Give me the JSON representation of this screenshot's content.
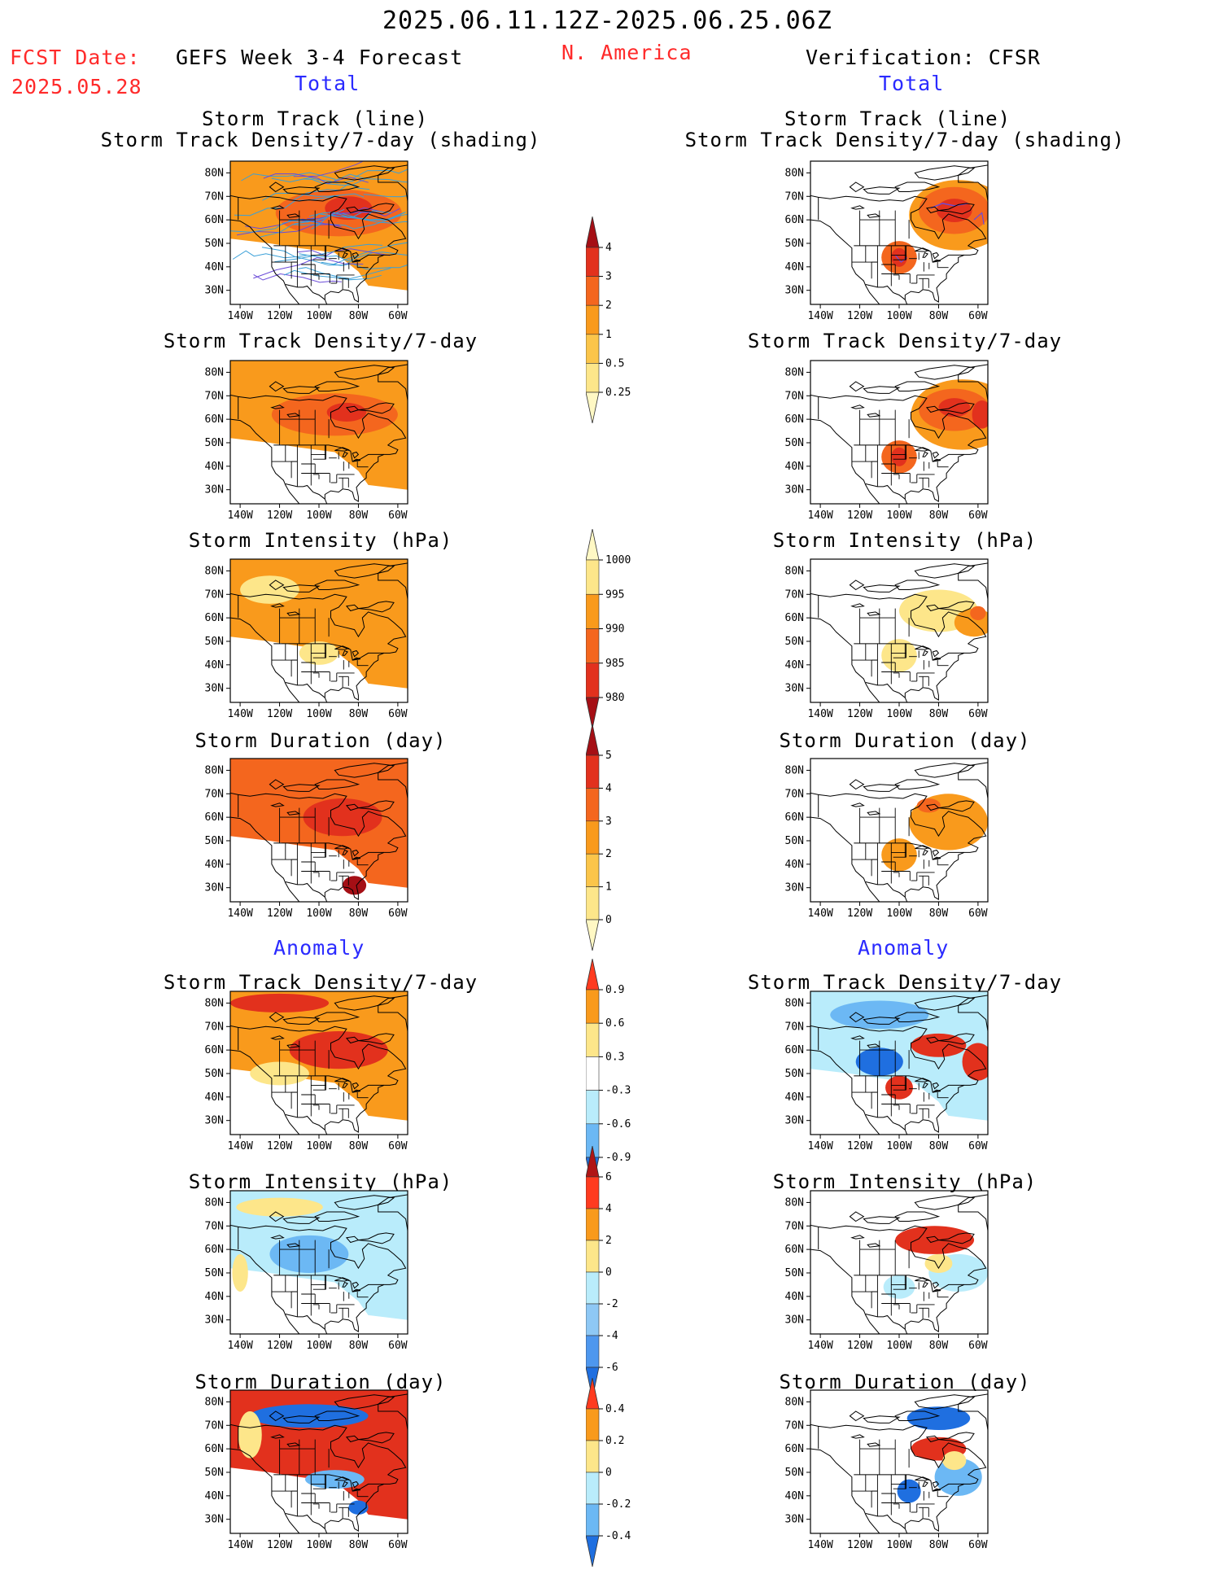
{
  "header": {
    "period": "2025.06.11.12Z-2025.06.25.06Z",
    "fcst_label": "FCST Date:",
    "fcst_date": "2025.05.28",
    "forecast_title": "GEFS Week 3-4 Forecast",
    "region": "N. America",
    "verification": "Verification: CFSR"
  },
  "sections": {
    "total": "Total",
    "anomaly": "Anomaly"
  },
  "panel_titles": {
    "track_line": "Storm Track (line)",
    "track_shade": "Storm Track Density/7-day (shading)",
    "density": "Storm Track Density/7-day",
    "intensity": "Storm Intensity (hPa)",
    "duration": "Storm Duration (day)"
  },
  "axes": {
    "lat_labels": [
      "80N",
      "70N",
      "60N",
      "50N",
      "40N",
      "30N"
    ],
    "lon_labels": [
      "140W",
      "120W",
      "100W",
      "80W",
      "60W"
    ]
  },
  "colorbars": {
    "density_total": {
      "labels": [
        "4",
        "3",
        "2",
        "1",
        "0.5",
        "0.25"
      ],
      "colors": [
        "#a50f15",
        "#e2311d",
        "#f4661e",
        "#f99a1c",
        "#fbc54a",
        "#fde68a",
        "#fff8c4"
      ]
    },
    "intensity_total": {
      "labels": [
        "1000",
        "995",
        "990",
        "985",
        "980"
      ],
      "colors": [
        "#fff8c4",
        "#fde68a",
        "#f99a1c",
        "#f4661e",
        "#e2311d",
        "#a50f15"
      ]
    },
    "duration_total": {
      "labels": [
        "5",
        "4",
        "3",
        "2",
        "1",
        "0"
      ],
      "colors": [
        "#a50f15",
        "#e2311d",
        "#f4661e",
        "#f99a1c",
        "#fbc54a",
        "#fde68a",
        "#fff8c4"
      ]
    },
    "density_anom": {
      "labels": [
        "0.9",
        "0.6",
        "0.3",
        "-0.3",
        "-0.6",
        "-0.9"
      ],
      "colors": [
        "#ff3b1f",
        "#f99a1c",
        "#fde68a",
        "#ffffff",
        "#b9ecfb",
        "#6cb8f4",
        "#1f6fe0"
      ]
    },
    "intensity_anom": {
      "labels": [
        "6",
        "4",
        "2",
        "0",
        "-2",
        "-4",
        "-6"
      ],
      "colors": [
        "#b01515",
        "#ff3b1f",
        "#f99a1c",
        "#fde68a",
        "#b9ecfb",
        "#8ec8f5",
        "#4e97ee",
        "#1f6fe0"
      ]
    },
    "duration_anom": {
      "labels": [
        "0.4",
        "0.2",
        "0",
        "-0.2",
        "-0.4"
      ],
      "colors": [
        "#ff3b1f",
        "#f99a1c",
        "#fde68a",
        "#b9ecfb",
        "#6cb8f4",
        "#1f6fe0"
      ]
    }
  },
  "palette": {
    "y0": "#fff8c4",
    "y1": "#fde68a",
    "o1": "#fbc54a",
    "o2": "#f99a1c",
    "o3": "#f4661e",
    "r1": "#e2311d",
    "r2": "#a50f15",
    "lb": "#b9ecfb",
    "mb": "#6cb8f4",
    "db": "#1f6fe0",
    "vb": "#1450c8",
    "track": "#3aa0d8",
    "track_obs": "#6b4bd8"
  },
  "panels": {
    "fc_track": {
      "fill": "o2",
      "blobs": [
        {
          "c": "o3",
          "lon": -90,
          "lat": 63,
          "rx": 32,
          "ry": 10
        },
        {
          "c": "r1",
          "lon": -85,
          "lat": 65,
          "rx": 12,
          "ry": 5
        }
      ],
      "tracks": 1
    },
    "ob_track": {
      "fill": null,
      "blobs": [
        {
          "c": "o2",
          "lon": -70,
          "lat": 62,
          "rx": 25,
          "ry": 15
        },
        {
          "c": "o3",
          "lon": -72,
          "lat": 64,
          "rx": 18,
          "ry": 10
        },
        {
          "c": "r1",
          "lon": -72,
          "lat": 64,
          "rx": 9,
          "ry": 5
        },
        {
          "c": "o3",
          "lon": -100,
          "lat": 44,
          "rx": 9,
          "ry": 7
        },
        {
          "c": "r1",
          "lon": -100,
          "lat": 44,
          "rx": 4,
          "ry": 4
        }
      ],
      "tracks": 0
    },
    "fc_density": {
      "fill": "o2",
      "blobs": [
        {
          "c": "o3",
          "lon": -92,
          "lat": 62,
          "rx": 32,
          "ry": 9
        },
        {
          "c": "r1",
          "lon": -86,
          "lat": 63,
          "rx": 10,
          "ry": 4
        }
      ],
      "tracks": 0
    },
    "ob_density": {
      "fill": null,
      "blobs": [
        {
          "c": "o2",
          "lon": -68,
          "lat": 62,
          "rx": 26,
          "ry": 15
        },
        {
          "c": "o3",
          "lon": -72,
          "lat": 64,
          "rx": 18,
          "ry": 9
        },
        {
          "c": "r1",
          "lon": -72,
          "lat": 65,
          "rx": 8,
          "ry": 4
        },
        {
          "c": "r1",
          "lon": -58,
          "lat": 62,
          "rx": 5,
          "ry": 6
        },
        {
          "c": "o3",
          "lon": -100,
          "lat": 44,
          "rx": 9,
          "ry": 7
        },
        {
          "c": "r1",
          "lon": -100,
          "lat": 44,
          "rx": 4,
          "ry": 4
        }
      ],
      "tracks": 0
    },
    "fc_intensity": {
      "fill": "o2",
      "blobs": [
        {
          "c": "y1",
          "lon": -125,
          "lat": 72,
          "rx": 15,
          "ry": 6
        },
        {
          "c": "y1",
          "lon": -100,
          "lat": 45,
          "rx": 10,
          "ry": 5
        }
      ],
      "tracks": 0
    },
    "ob_intensity": {
      "fill": null,
      "blobs": [
        {
          "c": "y1",
          "lon": -80,
          "lat": 63,
          "rx": 20,
          "ry": 9
        },
        {
          "c": "o2",
          "lon": -62,
          "lat": 58,
          "rx": 10,
          "ry": 6
        },
        {
          "c": "o3",
          "lon": -60,
          "lat": 62,
          "rx": 4,
          "ry": 3
        },
        {
          "c": "y1",
          "lon": -100,
          "lat": 44,
          "rx": 9,
          "ry": 7
        }
      ],
      "tracks": 0
    },
    "fc_duration": {
      "fill": "o3",
      "blobs": [
        {
          "c": "r1",
          "lon": -88,
          "lat": 60,
          "rx": 20,
          "ry": 8
        },
        {
          "c": "r2",
          "lon": -82,
          "lat": 31,
          "rx": 6,
          "ry": 4
        }
      ],
      "tracks": 0
    },
    "ob_duration": {
      "fill": null,
      "blobs": [
        {
          "c": "o2",
          "lon": -75,
          "lat": 58,
          "rx": 20,
          "ry": 12
        },
        {
          "c": "o3",
          "lon": -85,
          "lat": 65,
          "rx": 6,
          "ry": 3
        },
        {
          "c": "o2",
          "lon": -100,
          "lat": 44,
          "rx": 9,
          "ry": 7
        }
      ],
      "tracks": 0
    },
    "fc_density_anom": {
      "fill": "o2",
      "blobs": [
        {
          "c": "r1",
          "lon": -90,
          "lat": 60,
          "rx": 25,
          "ry": 8
        },
        {
          "c": "r1",
          "lon": -120,
          "lat": 80,
          "rx": 25,
          "ry": 4
        },
        {
          "c": "y1",
          "lon": -120,
          "lat": 50,
          "rx": 15,
          "ry": 5
        }
      ],
      "tracks": 0
    },
    "ob_density_anom": {
      "fill": "lb",
      "blobs": [
        {
          "c": "mb",
          "lon": -110,
          "lat": 75,
          "rx": 25,
          "ry": 6
        },
        {
          "c": "db",
          "lon": -110,
          "lat": 55,
          "rx": 12,
          "ry": 6
        },
        {
          "c": "r1",
          "lon": -80,
          "lat": 62,
          "rx": 14,
          "ry": 5
        },
        {
          "c": "r1",
          "lon": -60,
          "lat": 55,
          "rx": 8,
          "ry": 8
        },
        {
          "c": "r1",
          "lon": -100,
          "lat": 44,
          "rx": 7,
          "ry": 5
        }
      ],
      "tracks": 0
    },
    "fc_intensity_anom": {
      "fill": "lb",
      "blobs": [
        {
          "c": "mb",
          "lon": -105,
          "lat": 58,
          "rx": 20,
          "ry": 8
        },
        {
          "c": "y1",
          "lon": -120,
          "lat": 78,
          "rx": 22,
          "ry": 4
        },
        {
          "c": "y1",
          "lon": -140,
          "lat": 50,
          "rx": 4,
          "ry": 8
        }
      ],
      "tracks": 0
    },
    "ob_intensity_anom": {
      "fill": null,
      "blobs": [
        {
          "c": "r1",
          "lon": -82,
          "lat": 64,
          "rx": 20,
          "ry": 6
        },
        {
          "c": "lb",
          "lon": -70,
          "lat": 50,
          "rx": 15,
          "ry": 8
        },
        {
          "c": "y1",
          "lon": -80,
          "lat": 54,
          "rx": 7,
          "ry": 4
        },
        {
          "c": "lb",
          "lon": -100,
          "lat": 44,
          "rx": 8,
          "ry": 5
        }
      ],
      "tracks": 0
    },
    "fc_duration_anom": {
      "fill": "r1",
      "blobs": [
        {
          "c": "db",
          "lon": -105,
          "lat": 74,
          "rx": 30,
          "ry": 5
        },
        {
          "c": "mb",
          "lon": -92,
          "lat": 47,
          "rx": 15,
          "ry": 4
        },
        {
          "c": "y1",
          "lon": -135,
          "lat": 66,
          "rx": 6,
          "ry": 10
        },
        {
          "c": "db",
          "lon": -80,
          "lat": 35,
          "rx": 5,
          "ry": 3
        }
      ],
      "tracks": 0
    },
    "ob_duration_anom": {
      "fill": null,
      "blobs": [
        {
          "c": "db",
          "lon": -80,
          "lat": 73,
          "rx": 16,
          "ry": 5
        },
        {
          "c": "r1",
          "lon": -80,
          "lat": 60,
          "rx": 14,
          "ry": 5
        },
        {
          "c": "mb",
          "lon": -70,
          "lat": 48,
          "rx": 12,
          "ry": 8
        },
        {
          "c": "db",
          "lon": -95,
          "lat": 42,
          "rx": 6,
          "ry": 5
        },
        {
          "c": "y1",
          "lon": -72,
          "lat": 55,
          "rx": 6,
          "ry": 4
        }
      ],
      "tracks": 0
    }
  }
}
